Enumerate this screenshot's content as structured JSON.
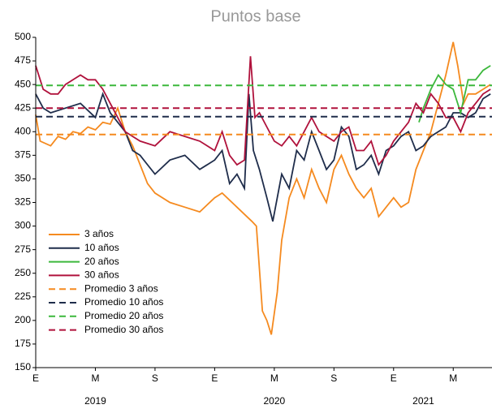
{
  "chart_data": {
    "type": "line",
    "title": "Puntos base",
    "xlim": [
      0,
      30.6
    ],
    "xticks": [
      {
        "value": 0,
        "label": "E"
      },
      {
        "value": 4,
        "label": "M"
      },
      {
        "value": 8,
        "label": "S"
      },
      {
        "value": 12,
        "label": "E"
      },
      {
        "value": 16,
        "label": "M"
      },
      {
        "value": 20,
        "label": "S"
      },
      {
        "value": 24,
        "label": "E"
      },
      {
        "value": 28,
        "label": "M"
      }
    ],
    "xgroups": [
      {
        "value": 4,
        "label": "2019"
      },
      {
        "value": 16,
        "label": "2020"
      },
      {
        "value": 26,
        "label": "2021"
      }
    ],
    "ylim": [
      150,
      500
    ],
    "yticks": [
      150,
      175,
      200,
      225,
      250,
      275,
      300,
      325,
      350,
      375,
      400,
      425,
      450,
      475,
      500
    ],
    "legend": "left",
    "series": [
      {
        "name": "3 años",
        "color": "#f58a1f",
        "dash": false,
        "x": [
          0,
          0.3,
          1,
          1.5,
          2,
          2.5,
          3,
          3.5,
          4,
          4.5,
          5,
          5.5,
          6,
          6.5,
          7,
          7.5,
          8,
          9,
          10,
          11,
          12,
          12.5,
          13.5,
          14.5,
          14.8,
          15.2,
          15.5,
          15.8,
          16.2,
          16.5,
          17,
          17.5,
          18,
          18.5,
          19,
          19.5,
          20,
          20.5,
          21,
          21.5,
          22,
          22.5,
          23,
          23.5,
          24,
          24.5,
          25,
          25.5,
          26,
          26.5,
          27,
          27.5,
          28,
          28.3,
          28.7,
          29,
          29.5,
          30,
          30.5
        ],
        "values": [
          418,
          390,
          385,
          395,
          392,
          400,
          398,
          405,
          402,
          410,
          408,
          425,
          400,
          385,
          365,
          345,
          335,
          325,
          320,
          315,
          330,
          335,
          320,
          305,
          300,
          210,
          200,
          185,
          230,
          285,
          330,
          350,
          330,
          360,
          340,
          325,
          360,
          375,
          355,
          340,
          330,
          340,
          310,
          320,
          330,
          320,
          325,
          360,
          380,
          400,
          430,
          460,
          495,
          470,
          430,
          440,
          440,
          445,
          450
        ]
      },
      {
        "name": "10 años",
        "color": "#1f2d4b",
        "dash": false,
        "x": [
          0,
          0.5,
          1,
          2,
          3,
          4,
          4.5,
          5,
          5.5,
          6,
          6.5,
          7,
          7.5,
          8,
          9,
          10,
          11,
          12,
          12.5,
          13,
          13.5,
          14,
          14.3,
          14.6,
          15,
          15.5,
          15.9,
          16.2,
          16.5,
          17,
          17.5,
          18,
          18.5,
          19,
          19.5,
          20,
          20.5,
          21,
          21.5,
          22,
          22.5,
          23,
          23.5,
          24,
          24.5,
          25,
          25.5,
          26,
          26.5,
          27,
          27.5,
          28,
          28.5,
          29,
          29.5,
          30,
          30.5
        ],
        "values": [
          440,
          425,
          420,
          425,
          430,
          415,
          440,
          420,
          410,
          400,
          380,
          375,
          365,
          355,
          370,
          375,
          360,
          370,
          380,
          345,
          355,
          340,
          440,
          380,
          360,
          330,
          305,
          330,
          355,
          340,
          380,
          370,
          400,
          380,
          360,
          370,
          405,
          395,
          360,
          365,
          375,
          355,
          380,
          385,
          395,
          400,
          380,
          385,
          395,
          400,
          405,
          420,
          420,
          415,
          420,
          435,
          440
        ]
      },
      {
        "name": "20 años",
        "color": "#3cb83c",
        "dash": false,
        "x": [
          25.7,
          26,
          26.5,
          27,
          27.5,
          28,
          28.5,
          29,
          29.5,
          30,
          30.5
        ],
        "values": [
          410,
          425,
          445,
          460,
          450,
          445,
          420,
          455,
          455,
          465,
          470
        ]
      },
      {
        "name": "30 años",
        "color": "#b0123c",
        "dash": false,
        "x": [
          0,
          0.5,
          1,
          1.5,
          2,
          2.5,
          3,
          3.5,
          4,
          4.5,
          5,
          5.5,
          6,
          6.5,
          7,
          8,
          9,
          10,
          11,
          12,
          12.5,
          13,
          13.5,
          14,
          14.4,
          14.7,
          15,
          15.5,
          16,
          16.5,
          17,
          17.5,
          18,
          18.5,
          19,
          19.5,
          20,
          20.5,
          21,
          21.5,
          22,
          22.5,
          23,
          23.5,
          24,
          24.5,
          25,
          25.5,
          26,
          26.5,
          27,
          27.5,
          28,
          28.5,
          29,
          29.5,
          30,
          30.5
        ],
        "values": [
          470,
          445,
          440,
          440,
          450,
          455,
          460,
          455,
          455,
          445,
          430,
          415,
          400,
          395,
          390,
          385,
          400,
          395,
          390,
          380,
          400,
          375,
          365,
          370,
          480,
          415,
          420,
          405,
          390,
          385,
          395,
          385,
          400,
          415,
          400,
          395,
          390,
          400,
          405,
          380,
          380,
          390,
          365,
          375,
          390,
          400,
          410,
          430,
          420,
          440,
          430,
          415,
          415,
          400,
          420,
          430,
          440,
          445
        ]
      },
      {
        "name": "Promedio 3 años",
        "color": "#f58a1f",
        "dash": true,
        "x": [
          0,
          30.6
        ],
        "values": [
          397,
          397
        ]
      },
      {
        "name": "Promedio 10 años",
        "color": "#1f2d4b",
        "dash": true,
        "x": [
          0,
          30.6
        ],
        "values": [
          416,
          416
        ]
      },
      {
        "name": "Promedio 20 años",
        "color": "#3cb83c",
        "dash": true,
        "x": [
          0,
          30.6
        ],
        "values": [
          449,
          449
        ]
      },
      {
        "name": "Promedio 30 años",
        "color": "#b0123c",
        "dash": true,
        "x": [
          0,
          30.6
        ],
        "values": [
          425,
          425
        ]
      }
    ]
  }
}
